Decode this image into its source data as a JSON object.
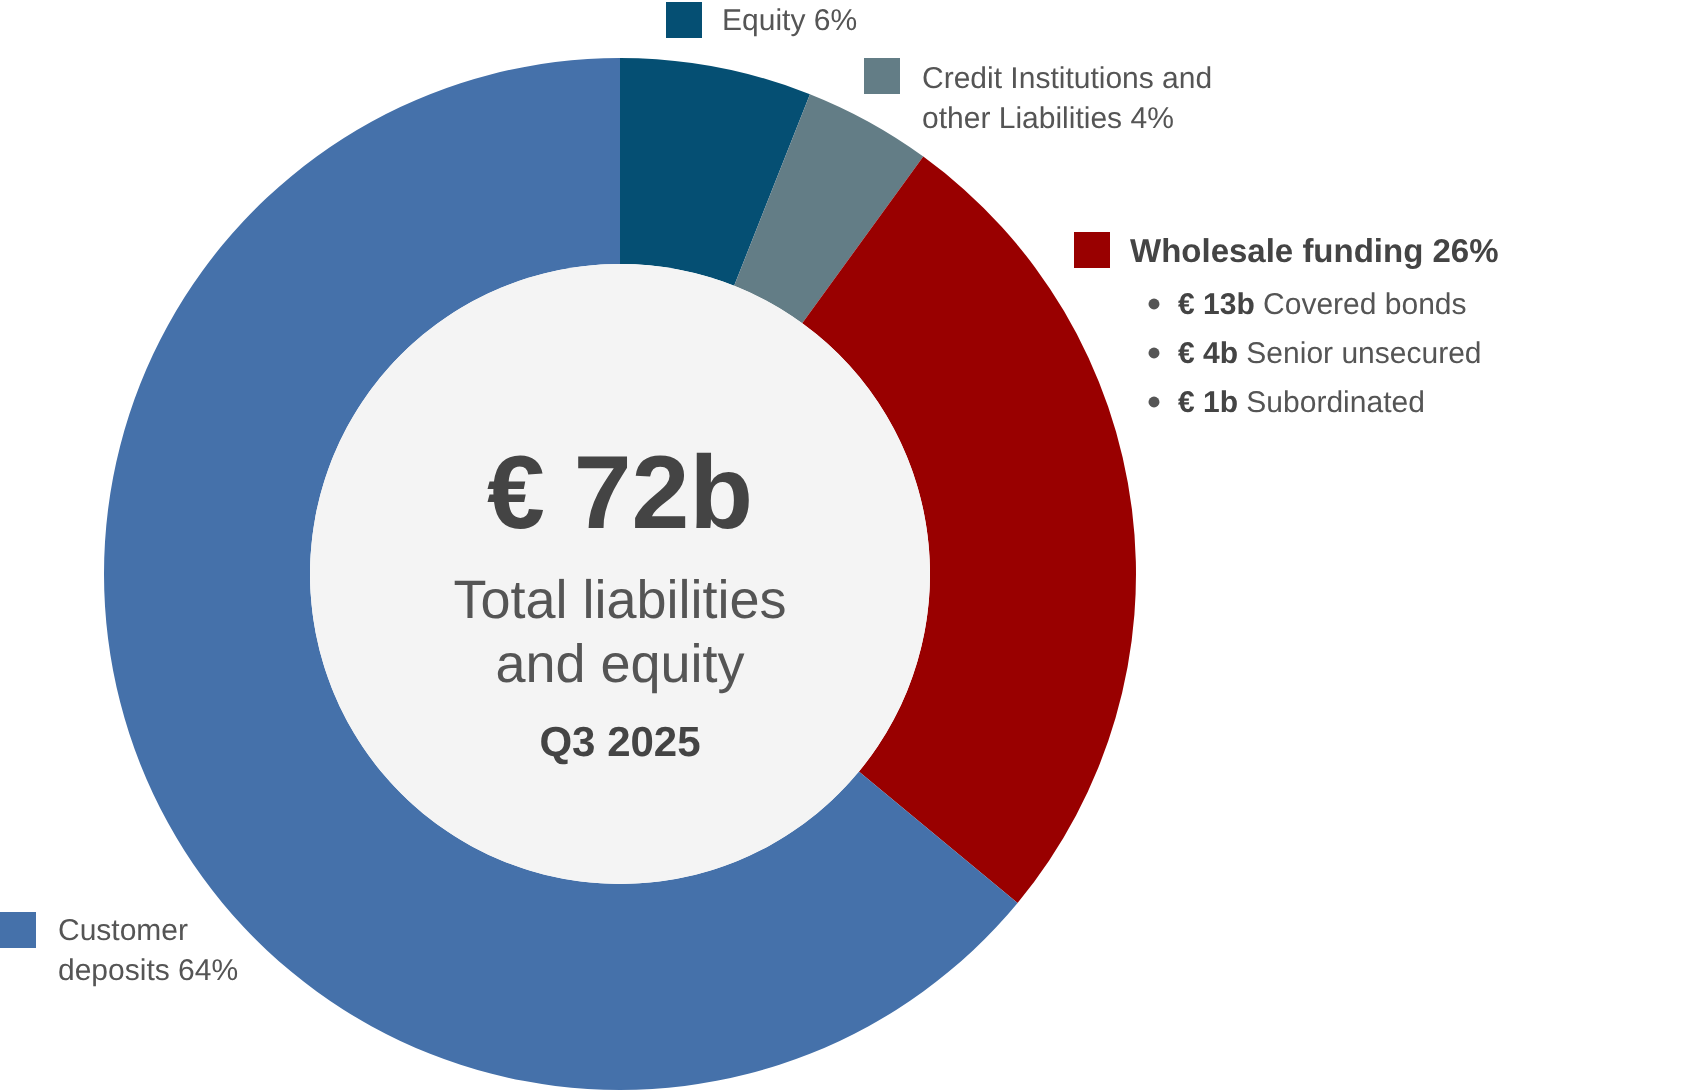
{
  "chart_data": {
    "type": "donut",
    "categories": [
      "Equity",
      "Credit Institutions and other Liabilities",
      "Wholesale funding",
      "Customer deposits"
    ],
    "values": [
      6,
      4,
      26,
      64
    ],
    "colors": [
      "#054f73",
      "#637d86",
      "#990000",
      "#4571aa"
    ],
    "value_labels": [
      "6%",
      "4%",
      "26%",
      "64%"
    ],
    "legend": "right",
    "annotations": [
      "€ 72b",
      "Total liabilities and equity",
      "Q3 2025",
      "€ 13b Covered bonds",
      "€ 4b Senior unsecured",
      "€ 1b Subordinated"
    ]
  }
}
